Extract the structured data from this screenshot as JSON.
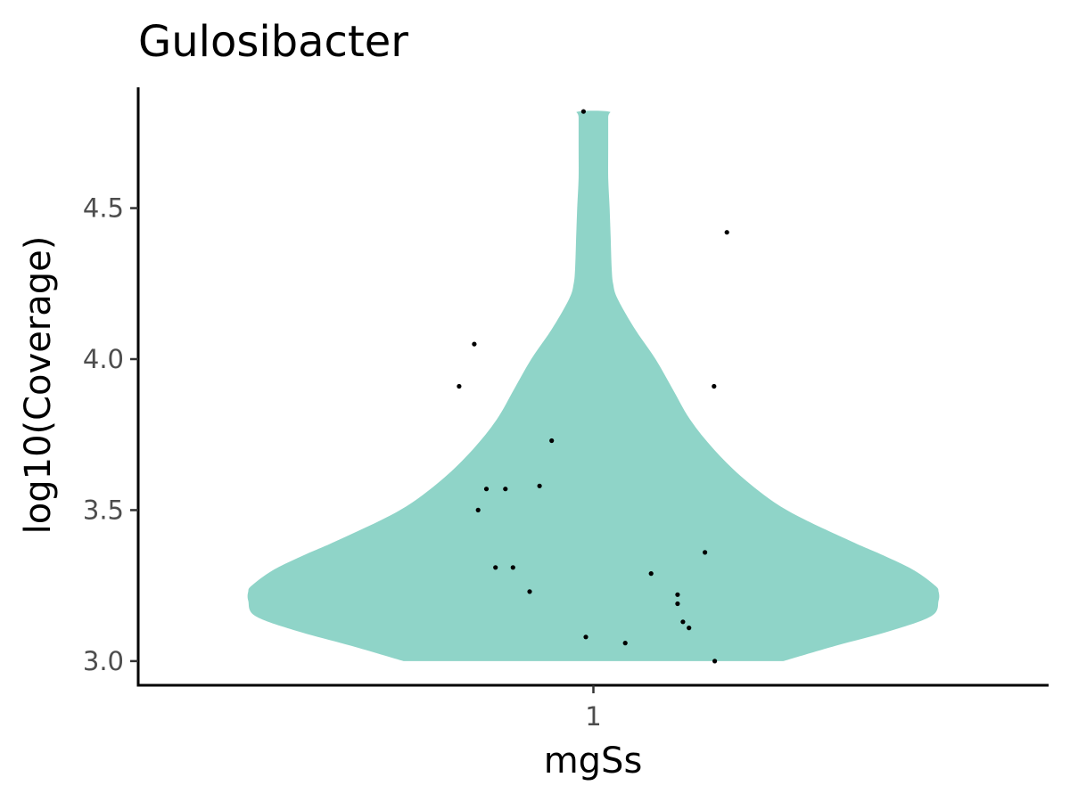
{
  "chart_data": {
    "type": "violin",
    "title": "Gulosibacter",
    "xlabel": "mgSs",
    "ylabel": "log10(Coverage)",
    "categories": [
      "1"
    ],
    "ylim": [
      2.92,
      4.9
    ],
    "yticks": [
      3.0,
      3.5,
      4.0,
      4.5
    ],
    "ytick_labels": [
      "3.0",
      "3.5",
      "4.0",
      "4.5"
    ],
    "grid": false,
    "legend": "none",
    "fill_color": "#8fd4c8",
    "point_color": "#000000",
    "violin": {
      "y": [
        3.0,
        3.05,
        3.1,
        3.15,
        3.2,
        3.23,
        3.25,
        3.3,
        3.35,
        3.4,
        3.5,
        3.6,
        3.7,
        3.8,
        3.9,
        4.0,
        4.1,
        4.2,
        4.25,
        4.3,
        4.4,
        4.5,
        4.6,
        4.7,
        4.8,
        4.82
      ],
      "density": [
        0.55,
        0.7,
        0.86,
        0.98,
        1.0,
        1.0,
        0.99,
        0.93,
        0.84,
        0.74,
        0.56,
        0.44,
        0.35,
        0.28,
        0.23,
        0.18,
        0.12,
        0.07,
        0.057,
        0.053,
        0.05,
        0.047,
        0.043,
        0.043,
        0.043,
        0.043
      ]
    },
    "points": [
      {
        "x": 0.987,
        "y": 4.82
      },
      {
        "x": 1.176,
        "y": 4.42
      },
      {
        "x": 0.843,
        "y": 4.05
      },
      {
        "x": 0.823,
        "y": 3.91
      },
      {
        "x": 1.159,
        "y": 3.91
      },
      {
        "x": 0.945,
        "y": 3.73
      },
      {
        "x": 0.859,
        "y": 3.57
      },
      {
        "x": 0.884,
        "y": 3.57
      },
      {
        "x": 0.929,
        "y": 3.58
      },
      {
        "x": 0.848,
        "y": 3.5
      },
      {
        "x": 1.147,
        "y": 3.36
      },
      {
        "x": 0.871,
        "y": 3.31
      },
      {
        "x": 0.894,
        "y": 3.31
      },
      {
        "x": 1.076,
        "y": 3.29
      },
      {
        "x": 0.916,
        "y": 3.23
      },
      {
        "x": 1.111,
        "y": 3.22
      },
      {
        "x": 1.111,
        "y": 3.19
      },
      {
        "x": 1.118,
        "y": 3.13
      },
      {
        "x": 1.126,
        "y": 3.11
      },
      {
        "x": 0.99,
        "y": 3.08
      },
      {
        "x": 1.042,
        "y": 3.06
      },
      {
        "x": 1.16,
        "y": 3.0
      }
    ]
  }
}
